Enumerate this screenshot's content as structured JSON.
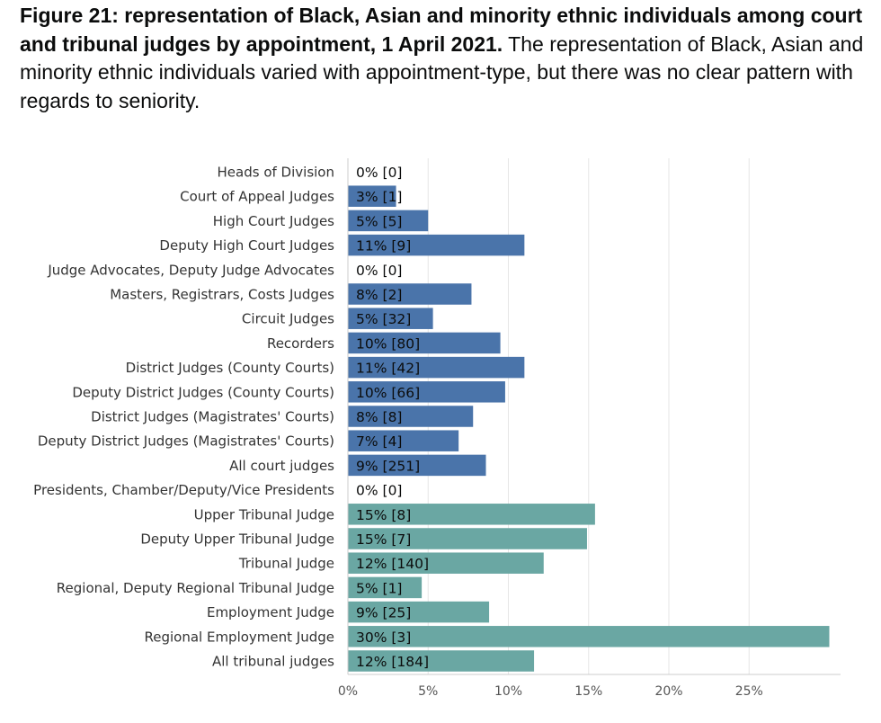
{
  "figure": {
    "title": "Figure 21: representation of Black, Asian and minority ethnic individuals among court and tribunal judges by appointment, 1 April 2021.",
    "description": "The representation of Black, Asian and minority ethnic individuals varied with appointment-type, but there was no clear pattern with regards to seniority."
  },
  "colors": {
    "court": "#4a74aa",
    "tribunal": "#6aa7a3",
    "grid": "#e6e6e6",
    "axis": "#cccccc",
    "text": "#0b0c0c"
  },
  "chart_data": {
    "type": "bar",
    "orientation": "horizontal",
    "title": "Figure 21: representation of Black, Asian and minority ethnic individuals among court and tribunal judges by appointment, 1 April 2021.",
    "xlabel": "",
    "ylabel": "",
    "xlim": [
      0,
      30
    ],
    "grid": true,
    "x_ticks": [
      0,
      5,
      10,
      15,
      20,
      25
    ],
    "x_tick_labels": [
      "0%",
      "5%",
      "10%",
      "15%",
      "20%",
      "25%"
    ],
    "categories": [
      "Heads of Division",
      "Court of Appeal Judges",
      "High Court Judges",
      "Deputy High Court Judges",
      "Judge Advocates, Deputy Judge Advocates",
      "Masters, Registrars, Costs Judges",
      "Circuit Judges",
      "Recorders",
      "District Judges (County Courts)",
      "Deputy District Judges (County Courts)",
      "District Judges (Magistrates' Courts)",
      "Deputy District Judges (Magistrates' Courts)",
      "All court judges",
      "Presidents, Chamber/Deputy/Vice Presidents",
      "Upper Tribunal Judge",
      "Deputy Upper Tribunal Judge",
      "Tribunal Judge",
      "Regional, Deputy Regional Tribunal Judge",
      "Employment Judge",
      "Regional Employment Judge",
      "All tribunal judges"
    ],
    "values": [
      0,
      3,
      5,
      11,
      0,
      7.7,
      5.3,
      9.5,
      11,
      9.8,
      7.8,
      6.9,
      8.6,
      0,
      15.4,
      14.9,
      12.2,
      4.6,
      8.8,
      30,
      11.6
    ],
    "data_labels": [
      "0% [0]",
      "3% [1]",
      "5% [5]",
      "11% [9]",
      "0% [0]",
      "8% [2]",
      "5% [32]",
      "10% [80]",
      "11% [42]",
      "10% [66]",
      "8% [8]",
      "7% [4]",
      "9% [251]",
      "0% [0]",
      "15% [8]",
      "15% [7]",
      "12% [140]",
      "5% [1]",
      "9% [25]",
      "30% [3]",
      "12% [184]"
    ],
    "groups": [
      "court",
      "court",
      "court",
      "court",
      "court",
      "court",
      "court",
      "court",
      "court",
      "court",
      "court",
      "court",
      "court",
      "tribunal",
      "tribunal",
      "tribunal",
      "tribunal",
      "tribunal",
      "tribunal",
      "tribunal",
      "tribunal"
    ]
  }
}
